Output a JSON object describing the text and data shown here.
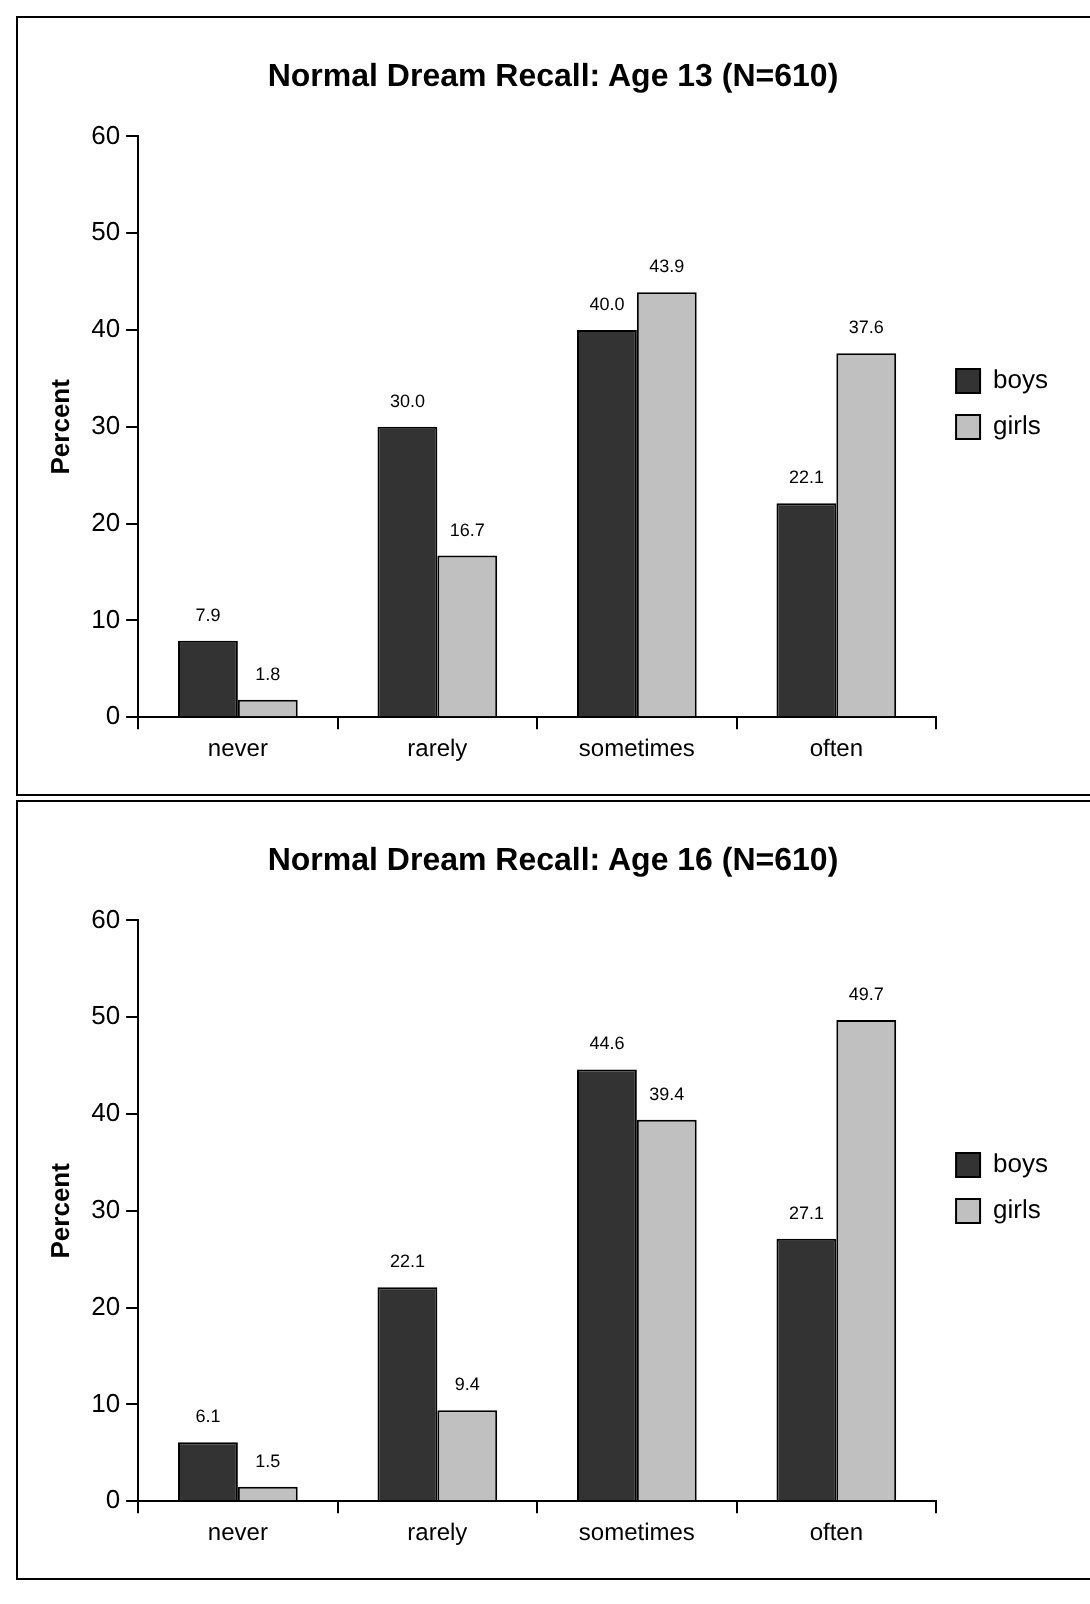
{
  "chart_data": [
    {
      "type": "bar",
      "title": "Normal Dream Recall: Age 13 (N=610)",
      "ylabel": "Percent",
      "categories": [
        "never",
        "rarely",
        "sometimes",
        "often"
      ],
      "series": [
        {
          "name": "boys",
          "color": "#333333",
          "values": [
            7.9,
            30.0,
            40.0,
            22.1
          ],
          "value_labels": [
            "7.9",
            "30.0",
            "40.0",
            "22.1"
          ]
        },
        {
          "name": "girls",
          "color": "#c0c0c0",
          "values": [
            1.8,
            16.7,
            43.9,
            37.6
          ],
          "value_labels": [
            "1.8",
            "16.7",
            "43.9",
            "37.6"
          ]
        }
      ],
      "ylim": [
        0,
        60
      ],
      "yticks": [
        0,
        10,
        20,
        30,
        40,
        50,
        60
      ],
      "grid": false,
      "legend": "right"
    },
    {
      "type": "bar",
      "title": "Normal Dream Recall: Age 16 (N=610)",
      "ylabel": "Percent",
      "categories": [
        "never",
        "rarely",
        "sometimes",
        "often"
      ],
      "series": [
        {
          "name": "boys",
          "color": "#333333",
          "values": [
            6.1,
            22.1,
            44.6,
            27.1
          ],
          "value_labels": [
            "6.1",
            "22.1",
            "44.6",
            "27.1"
          ]
        },
        {
          "name": "girls",
          "color": "#c0c0c0",
          "values": [
            1.5,
            9.4,
            39.4,
            49.7
          ],
          "value_labels": [
            "1.5",
            "9.4",
            "39.4",
            "49.7"
          ]
        }
      ],
      "ylim": [
        0,
        60
      ],
      "yticks": [
        0,
        10,
        20,
        30,
        40,
        50,
        60
      ],
      "grid": false,
      "legend": "right"
    }
  ]
}
